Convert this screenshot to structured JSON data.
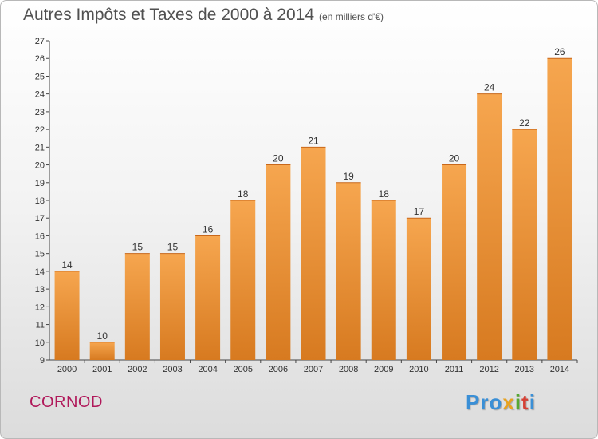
{
  "title": "Autres Impôts et Taxes de 2000 à 2014",
  "title_unit": "(en milliers d'€)",
  "place": "CORNOD",
  "logo": {
    "p1": "Pro",
    "p2": "x",
    "p3": "i",
    "p4": "t",
    "p5": "i"
  },
  "colors": {
    "bar_top": "#f6a64f",
    "bar_bottom": "#d77a20",
    "title": "#505050",
    "place": "#b0185a"
  },
  "chart_data": {
    "type": "bar",
    "title": "Autres Impôts et Taxes de 2000 à 2014",
    "subtitle": "(en milliers d'€)",
    "categories": [
      "2000",
      "2001",
      "2002",
      "2003",
      "2004",
      "2005",
      "2006",
      "2007",
      "2008",
      "2009",
      "2010",
      "2011",
      "2012",
      "2013",
      "2014"
    ],
    "values": [
      14,
      10,
      15,
      15,
      16,
      18,
      20,
      21,
      19,
      18,
      17,
      20,
      24,
      22,
      26
    ],
    "ylim": [
      9,
      27
    ],
    "yticks": [
      9,
      10,
      11,
      12,
      13,
      14,
      15,
      16,
      17,
      18,
      19,
      20,
      21,
      22,
      23,
      24,
      25,
      26,
      27
    ],
    "grid": false,
    "legend": "none"
  }
}
